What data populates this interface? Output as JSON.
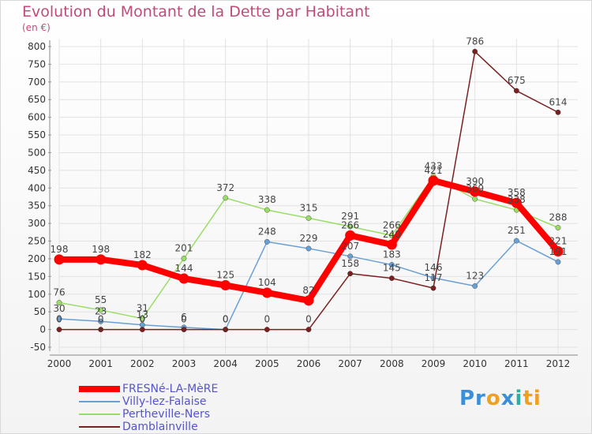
{
  "chart_data": {
    "type": "line",
    "title": "Evolution du Montant de la Dette par Habitant",
    "unit": "(en €)",
    "categories": [
      "2000",
      "2001",
      "2002",
      "2003",
      "2004",
      "2005",
      "2006",
      "2007",
      "2008",
      "2009",
      "2010",
      "2011",
      "2012"
    ],
    "yticks": [
      -50,
      0,
      50,
      100,
      150,
      200,
      250,
      300,
      350,
      400,
      450,
      500,
      550,
      600,
      650,
      700,
      750,
      800
    ],
    "ylim": [
      -50,
      800
    ],
    "grid": true,
    "legend_position": "bottom-left",
    "series": [
      {
        "name": "FRESNé-LA-MèRE",
        "color": "#ff0000",
        "width": 8,
        "values": [
          198,
          198,
          182,
          144,
          125,
          104,
          82,
          266,
          240,
          421,
          390,
          358,
          221
        ],
        "labels": [
          "198",
          "198",
          "182",
          "144",
          "125",
          "104",
          "82",
          "266",
          "240",
          "421",
          "390",
          "358",
          "221"
        ]
      },
      {
        "name": "Villy-lez-Falaise",
        "color": "#6a9fd4",
        "width": 1.5,
        "values": [
          30,
          23,
          13,
          6,
          0,
          248,
          229,
          207,
          183,
          146,
          123,
          251,
          191
        ],
        "labels": [
          "30",
          "23",
          "13",
          "6",
          "0",
          "248",
          "229",
          "207",
          "183",
          "146",
          "123",
          "251",
          "191"
        ]
      },
      {
        "name": "Pertheville-Ners",
        "color": "#99dd66",
        "width": 1.5,
        "values": [
          76,
          55,
          31,
          201,
          372,
          338,
          315,
          291,
          266,
          433,
          369,
          338,
          288
        ],
        "labels": [
          "76",
          "55",
          "31",
          "201",
          "372",
          "338",
          "315",
          "291",
          "266",
          "433",
          "369",
          "338",
          "288"
        ]
      },
      {
        "name": "Damblainville",
        "color": "#7a2020",
        "width": 1.5,
        "values": [
          0,
          0,
          0,
          0,
          0,
          0,
          0,
          158,
          145,
          117,
          786,
          675,
          614
        ],
        "labels": [
          "0",
          "0",
          "0",
          "0",
          "0",
          "0",
          "0",
          "158",
          "145",
          "117",
          "786",
          "675",
          "614"
        ]
      }
    ]
  },
  "logo": {
    "parts": [
      "Pr",
      "o",
      "x",
      "i",
      "ti"
    ],
    "colors": [
      "#3a8fd8",
      "#f0a020",
      "#3a8fd8",
      "#2ab0a0",
      "#f0a020"
    ]
  }
}
